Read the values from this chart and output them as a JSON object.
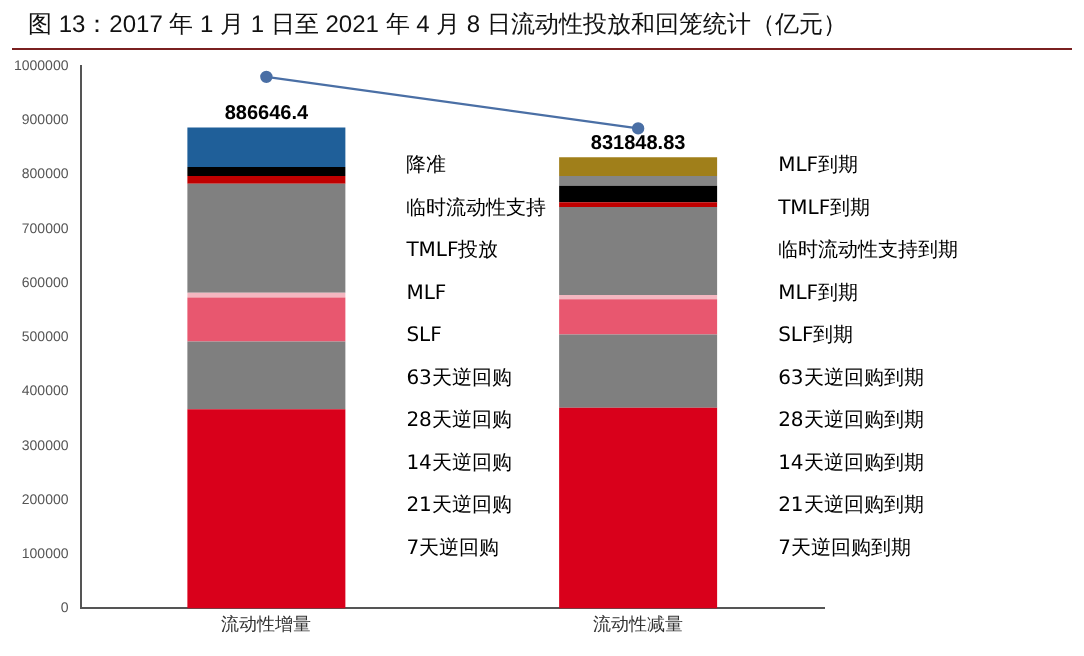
{
  "chart_data": {
    "type": "bar",
    "title": "图 13：2017 年 1 月 1 日至 2021 年 4 月 8 日流动性投放和回笼统计（亿元）",
    "categories": [
      "流动性增量",
      "流动性减量"
    ],
    "stacked": true,
    "ylim": [
      0,
      1000000
    ],
    "yticks": [
      0,
      100000,
      200000,
      300000,
      400000,
      500000,
      600000,
      700000,
      800000,
      900000,
      1000000
    ],
    "grid": false,
    "legend": false,
    "series": [
      {
        "color": "#d9001b",
        "values": [
          367000,
          370000
        ]
      },
      {
        "color": "#7f7f7f",
        "values": [
          125000,
          135000
        ]
      },
      {
        "color": "#e8576f",
        "values": [
          81000,
          65000
        ]
      },
      {
        "color": "#f4b6c0",
        "values": [
          9000,
          8000
        ]
      },
      {
        "color": "#808080",
        "values": [
          201000,
          162000
        ]
      },
      {
        "color": "#c00000",
        "values": [
          14000,
          9000
        ]
      },
      {
        "color": "#000000",
        "values": [
          17000,
          30000
        ]
      },
      {
        "color": "#858585",
        "values": [
          null,
          18000
        ]
      },
      {
        "color": "#1f5f99",
        "values": [
          72646.4,
          null
        ]
      },
      {
        "color": "#a07f1a",
        "values": [
          null,
          34848.83
        ]
      },
      {
        "type": "line",
        "color": "#4a6fa5",
        "marker": "circle",
        "values": [
          980000,
          885000
        ]
      }
    ],
    "totals": [
      "886646.4",
      "831848.83"
    ],
    "annotations": [
      "降准",
      "临时流动性支持",
      "TMLF投放",
      "MLF",
      "SLF",
      "63天逆回购",
      "28天逆回购",
      "14天逆回购",
      "21天逆回购",
      "7天逆回购",
      "MLF到期",
      "TMLF到期",
      "临时流动性支持到期",
      "MLF到期",
      "SLF到期",
      "63天逆回购到期",
      "28天逆回购到期",
      "14天逆回购到期",
      "21天逆回购到期",
      "7天逆回购到期"
    ]
  }
}
